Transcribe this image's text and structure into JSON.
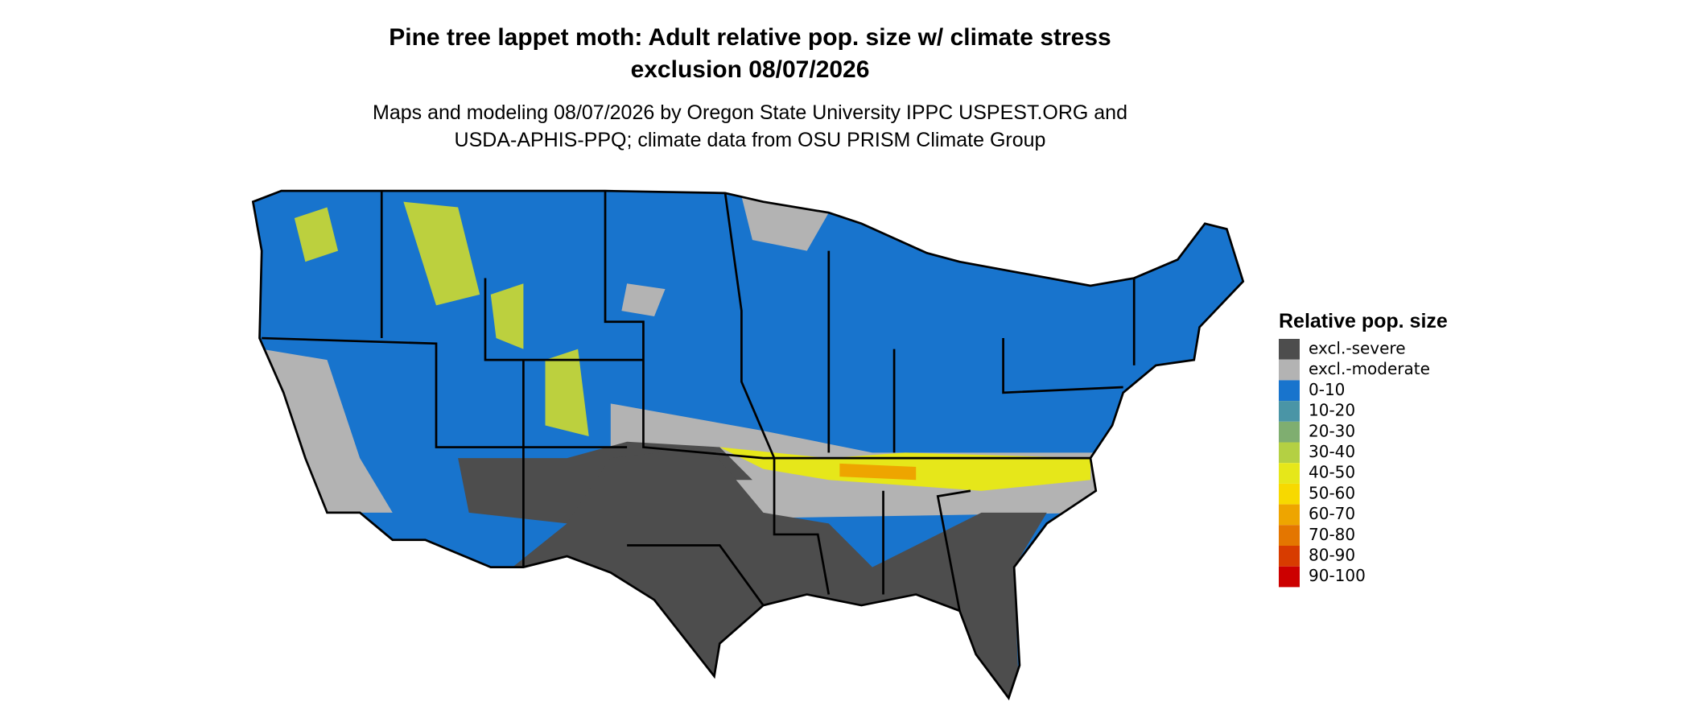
{
  "header": {
    "title": [
      "Pine tree lappet moth: Adult relative pop. size w/ climate stress",
      "exclusion 08/07/2026"
    ],
    "subtitle": [
      "Maps and modeling 08/07/2026 by Oregon State University IPPC USPEST.ORG and",
      "USDA-APHIS-PPQ; climate data from OSU PRISM Climate Group"
    ]
  },
  "legend": {
    "title": "Relative pop. size",
    "items": [
      {
        "label": "excl.-severe",
        "color": "#4d4d4d"
      },
      {
        "label": "excl.-moderate",
        "color": "#b3b3b3"
      },
      {
        "label": "0-10",
        "color": "#1874cd"
      },
      {
        "label": "10-20",
        "color": "#4a95a6"
      },
      {
        "label": "20-30",
        "color": "#7fae70"
      },
      {
        "label": "30-40",
        "color": "#b4d043"
      },
      {
        "label": "40-50",
        "color": "#e6e71a"
      },
      {
        "label": "50-60",
        "color": "#f7d900"
      },
      {
        "label": "60-70",
        "color": "#eea500"
      },
      {
        "label": "70-80",
        "color": "#e47600"
      },
      {
        "label": "80-90",
        "color": "#d83c00"
      },
      {
        "label": "90-100",
        "color": "#cc0000"
      }
    ]
  }
}
